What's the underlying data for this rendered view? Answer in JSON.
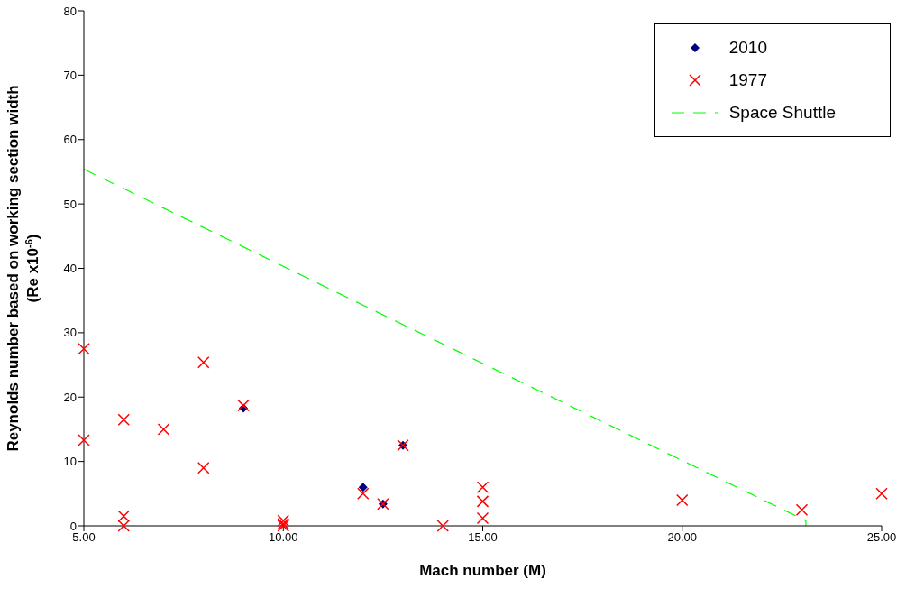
{
  "chart_data": {
    "type": "scatter",
    "xlabel": "Mach number (M)",
    "ylabel": "Reynolds number based on working section width\n(Re x10$^{-6}$)",
    "xlim": [
      5,
      25
    ],
    "xticks": [
      {
        "value": 5,
        "label": "5.00"
      },
      {
        "value": 10,
        "label": "10.00"
      },
      {
        "value": 15,
        "label": "15.00"
      },
      {
        "value": 20,
        "label": "20.00"
      },
      {
        "value": 25,
        "label": "25.00"
      }
    ],
    "ylim": [
      0,
      80
    ],
    "yticks": [
      0,
      10,
      20,
      30,
      40,
      50,
      60,
      70,
      80
    ],
    "grid": false,
    "legend": "top right",
    "series": [
      {
        "name": "2010",
        "marker": "diamond",
        "color": "#000080",
        "x": [
          9,
          12,
          12.5,
          13
        ],
        "values": [
          18.3,
          6,
          3.4,
          12.5
        ]
      },
      {
        "name": "1977",
        "marker": "cross",
        "color": "#ff0000",
        "x": [
          5,
          5,
          6,
          6,
          6,
          7,
          8,
          8,
          9,
          10,
          10,
          10,
          12,
          12.5,
          13,
          14,
          15,
          15,
          15,
          20,
          23,
          25
        ],
        "values": [
          27.5,
          13.3,
          16.5,
          1.5,
          0,
          15,
          25.4,
          9,
          18.7,
          0.8,
          0.3,
          0,
          5,
          3.4,
          12.5,
          0,
          6,
          3.8,
          1.2,
          4,
          2.5,
          5
        ]
      },
      {
        "name": "Space Shuttle",
        "type": "line",
        "marker": "none",
        "line_style": "dashed",
        "color": "#00ff00",
        "x": [
          5,
          23.1,
          23.1
        ],
        "values": [
          55.4,
          0.8,
          0
        ]
      }
    ]
  }
}
